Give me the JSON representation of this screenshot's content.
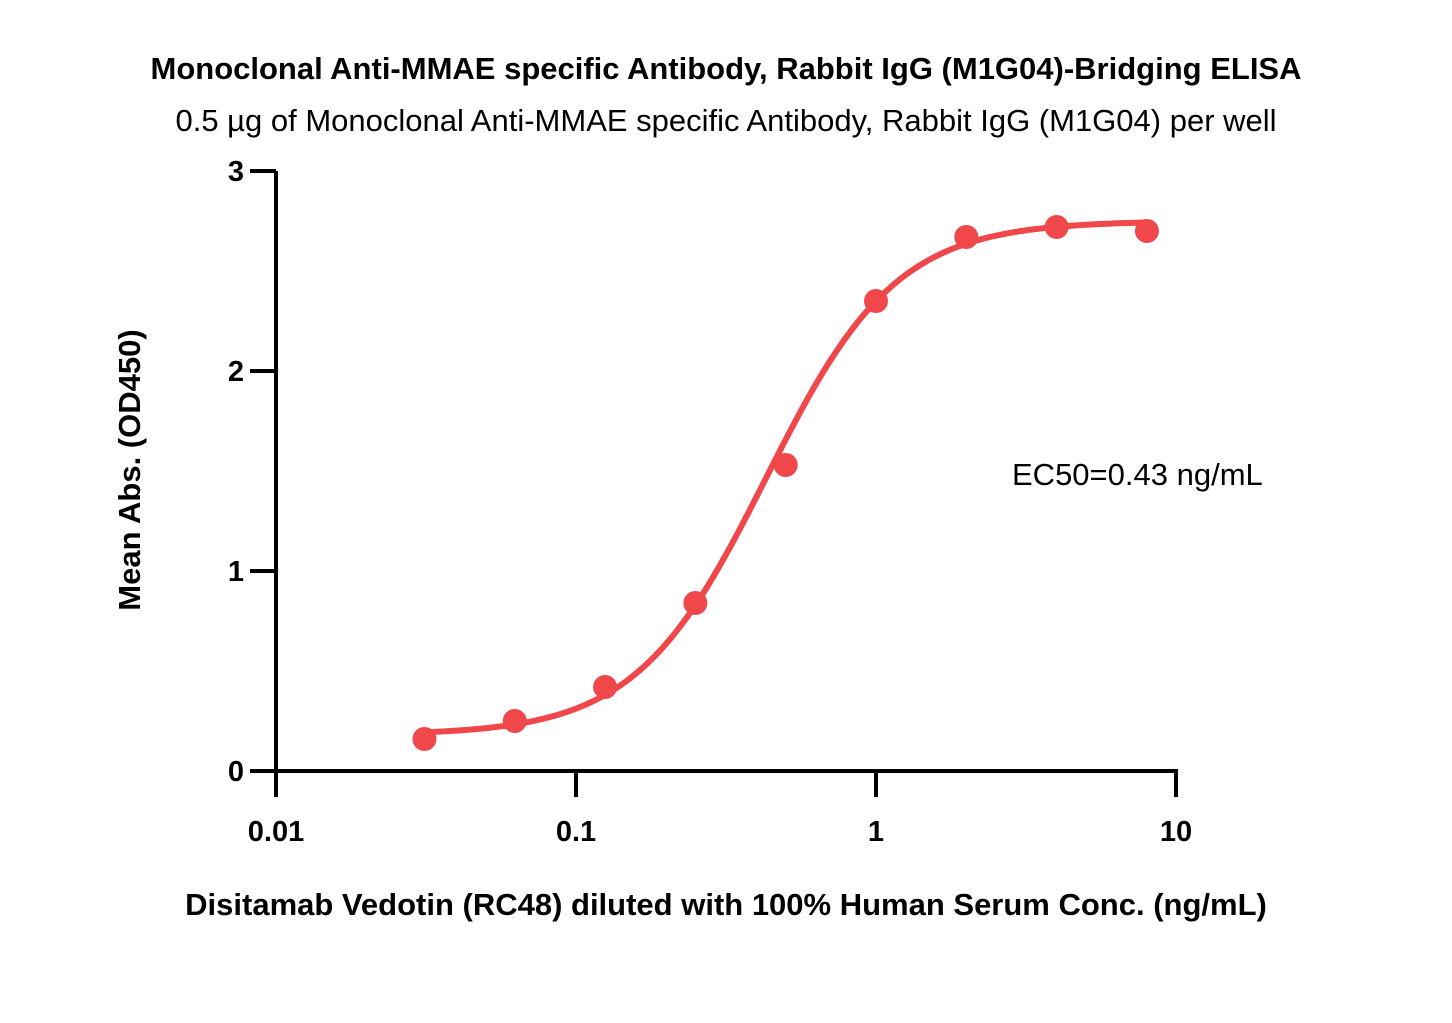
{
  "chart_data": {
    "type": "scatter",
    "title": "Monoclonal Anti-MMAE specific Antibody, Rabbit IgG (M1G04)-Bridging ELISA",
    "subtitle": "0.5 µg of Monoclonal Anti-MMAE specific Antibody, Rabbit IgG (M1G04) per well",
    "xlabel": "Disitamab Vedotin (RC48) diluted with 100% Human Serum Conc. (ng/mL)",
    "ylabel": "Mean Abs. (OD450)",
    "xscale": "log",
    "xlim": [
      0.01,
      10
    ],
    "ylim": [
      0,
      3
    ],
    "x_ticks": [
      "0.01",
      "0.1",
      "1",
      "10"
    ],
    "y_ticks": [
      "0",
      "1",
      "2",
      "3"
    ],
    "annotation": "EC50=0.43 ng/mL",
    "series": [
      {
        "color": "#f0474b",
        "x": [
          0.03125,
          0.0625,
          0.125,
          0.25,
          0.5,
          1,
          2,
          4,
          8
        ],
        "y": [
          0.16,
          0.25,
          0.42,
          0.84,
          1.53,
          2.35,
          2.67,
          2.72,
          2.7
        ]
      }
    ],
    "fit": {
      "model": "4PL",
      "bottom": 0.18,
      "top": 2.75,
      "ec50": 0.43,
      "hill": 2.0
    }
  }
}
